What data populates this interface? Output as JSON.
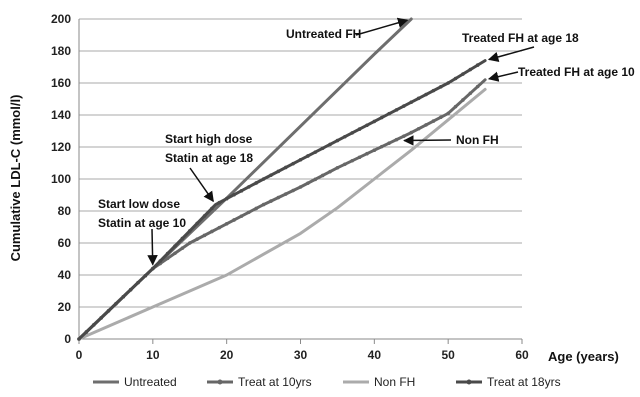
{
  "chart_data": {
    "type": "line",
    "title": "",
    "xlabel": "Age (years)",
    "ylabel": "Cumulative LDL-C (mmol/l)",
    "xlim": [
      0,
      60
    ],
    "ylim": [
      0,
      200
    ],
    "x_ticks": [
      0,
      10,
      20,
      30,
      40,
      50,
      60
    ],
    "y_ticks": [
      0,
      20,
      40,
      60,
      80,
      100,
      120,
      140,
      160,
      180,
      200
    ],
    "grid": "horizontal",
    "legend_position": "bottom",
    "series": [
      {
        "name": "Untreated",
        "color": "#6e6e6e",
        "marker": "none",
        "x": [
          0,
          10,
          20,
          30,
          40,
          45
        ],
        "y": [
          0,
          44,
          88,
          133,
          178,
          200
        ]
      },
      {
        "name": "Treat at 10yrs",
        "color": "#676767",
        "marker": "dot",
        "x": [
          0,
          10,
          15,
          20,
          25,
          30,
          35,
          40,
          45,
          50,
          55
        ],
        "y": [
          0,
          44,
          60,
          72,
          84,
          95,
          107,
          118,
          129,
          141,
          162
        ]
      },
      {
        "name": "Non FH",
        "color": "#ababab",
        "marker": "none",
        "x": [
          0,
          5,
          10,
          15,
          20,
          25,
          30,
          35,
          40,
          45,
          50,
          55
        ],
        "y": [
          0,
          10,
          20,
          30,
          40,
          53,
          66,
          82,
          100,
          118,
          137,
          156
        ]
      },
      {
        "name": "Treat at 18yrs",
        "color": "#4a4a4a",
        "marker": "dot",
        "x": [
          0,
          10,
          18.5,
          25,
          30,
          35,
          40,
          45,
          50,
          55
        ],
        "y": [
          0,
          44,
          84,
          100,
          112,
          124,
          136,
          148,
          160,
          174
        ]
      }
    ],
    "annotations": [
      {
        "id": "untreated",
        "lines": [
          "Untreated FH"
        ],
        "arrow_to": [
          45,
          200
        ]
      },
      {
        "id": "treat18",
        "lines": [
          "Treated FH at age 18"
        ],
        "arrow_to": [
          55,
          174
        ]
      },
      {
        "id": "treat10",
        "lines": [
          "Treated FH at age 10"
        ],
        "arrow_to": [
          55,
          162
        ]
      },
      {
        "id": "nonfh",
        "lines": [
          "Non FH"
        ],
        "arrow_to": [
          43.5,
          124
        ]
      },
      {
        "id": "highdose",
        "lines": [
          "Start high dose",
          "Statin at age 18"
        ],
        "arrow_to": [
          18.5,
          84
        ]
      },
      {
        "id": "lowdose",
        "lines": [
          "Start low dose",
          "Statin at age 10"
        ],
        "arrow_to": [
          10,
          44
        ]
      }
    ]
  }
}
